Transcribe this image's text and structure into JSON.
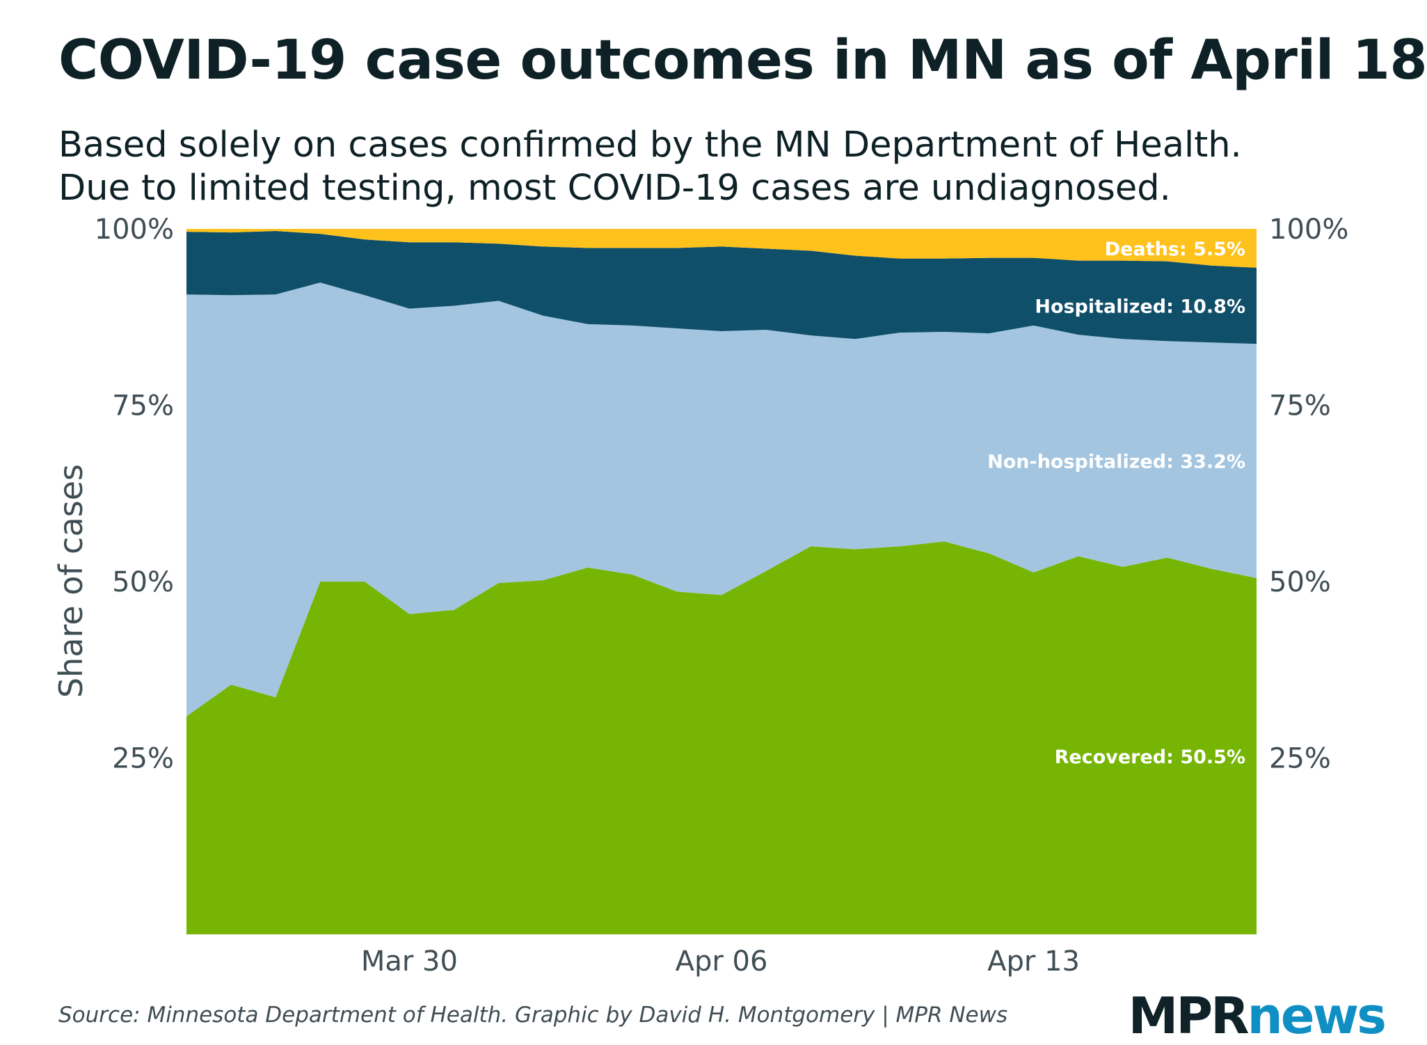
{
  "title": "COVID-19 case outcomes in MN as of April 18",
  "subtitle": {
    "line1": "Based solely on cases confirmed by the MN Department of Health.",
    "line2": "Due to limited testing, most COVID-19 cases are undiagnosed."
  },
  "source": "Source: Minnesota Department of Health. Graphic by David H. Montgomery | MPR News",
  "logo": {
    "mpr": "MPR",
    "news": "news"
  },
  "chart_data": {
    "type": "area",
    "stacked": true,
    "ylabel": "Share of cases",
    "ylim": [
      0,
      100
    ],
    "y_ticks": [
      "25%",
      "50%",
      "75%",
      "100%"
    ],
    "y_tick_values": [
      25,
      50,
      75,
      100
    ],
    "y_axis_sides": [
      "left",
      "right"
    ],
    "x_ticks": [
      {
        "label": "Mar 30",
        "x": "2020-03-30"
      },
      {
        "label": "Apr 06",
        "x": "2020-04-06"
      },
      {
        "label": "Apr 13",
        "x": "2020-04-13"
      }
    ],
    "x": [
      "2020-03-25",
      "2020-03-26",
      "2020-03-27",
      "2020-03-28",
      "2020-03-29",
      "2020-03-30",
      "2020-03-31",
      "2020-04-01",
      "2020-04-02",
      "2020-04-03",
      "2020-04-04",
      "2020-04-05",
      "2020-04-06",
      "2020-04-07",
      "2020-04-08",
      "2020-04-09",
      "2020-04-10",
      "2020-04-11",
      "2020-04-12",
      "2020-04-13",
      "2020-04-14",
      "2020-04-15",
      "2020-04-16",
      "2020-04-17",
      "2020-04-18"
    ],
    "series": [
      {
        "name": "Recovered",
        "label": "Recovered: 50.5%",
        "color": "#76b504",
        "values": [
          30.9,
          35.4,
          33.6,
          50.0,
          50.0,
          45.4,
          46.0,
          49.8,
          50.2,
          52.0,
          51.0,
          48.6,
          48.1,
          51.5,
          55.0,
          54.6,
          55.0,
          55.7,
          54.0,
          51.3,
          53.6,
          52.1,
          53.4,
          51.8,
          50.5
        ]
      },
      {
        "name": "Non-hospitalized",
        "label": "Non-hospitalized: 33.2%",
        "color": "#a3c5e0",
        "values": [
          59.8,
          55.2,
          57.1,
          42.4,
          40.6,
          43.3,
          43.1,
          40.0,
          37.5,
          34.5,
          35.3,
          37.3,
          37.4,
          34.2,
          29.9,
          29.8,
          30.3,
          29.7,
          31.2,
          35.0,
          31.4,
          32.3,
          30.7,
          32.1,
          33.2
        ]
      },
      {
        "name": "Hospitalized",
        "label": "Hospitalized: 10.8%",
        "color": "#0f4f69",
        "values": [
          8.9,
          8.9,
          9.0,
          6.9,
          7.9,
          9.4,
          9.0,
          8.1,
          9.8,
          10.8,
          11.0,
          11.4,
          12.0,
          11.5,
          12.0,
          11.8,
          10.5,
          10.4,
          10.7,
          9.6,
          10.5,
          11.1,
          11.3,
          10.9,
          10.8
        ]
      },
      {
        "name": "Deaths",
        "label": "Deaths: 5.5%",
        "color": "#ffc21c",
        "values": [
          0.4,
          0.5,
          0.3,
          0.7,
          1.5,
          1.9,
          1.9,
          2.1,
          2.5,
          2.7,
          2.7,
          2.7,
          2.5,
          2.8,
          3.1,
          3.8,
          4.2,
          4.2,
          4.1,
          4.1,
          4.5,
          4.5,
          4.6,
          5.2,
          5.5
        ]
      }
    ],
    "legend": "direct-labels-right",
    "grid": false
  }
}
